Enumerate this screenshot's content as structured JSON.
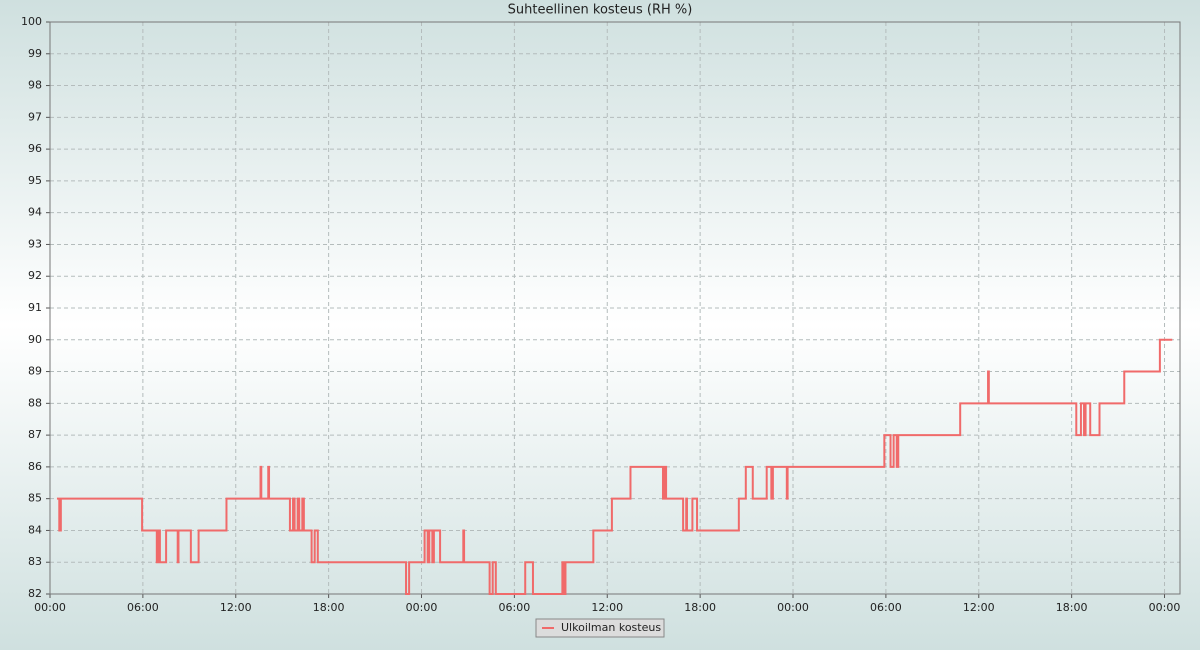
{
  "chart_data": {
    "type": "line",
    "title": "Suhteellinen kosteus (RH %)",
    "x": [
      0.45,
      0.6,
      0.6,
      0.7,
      0.7,
      5.95,
      5.95,
      6.9,
      6.9,
      7.0,
      7.0,
      7.1,
      7.1,
      7.5,
      7.5,
      8.25,
      8.25,
      8.3,
      8.3,
      9.1,
      9.1,
      9.6,
      9.6,
      11.4,
      11.4,
      13.6,
      13.6,
      13.65,
      13.65,
      14.1,
      14.1,
      14.15,
      14.15,
      15.5,
      15.5,
      15.7,
      15.7,
      15.8,
      15.8,
      16.0,
      16.0,
      16.1,
      16.1,
      16.3,
      16.3,
      16.4,
      16.4,
      16.9,
      16.9,
      17.1,
      17.1,
      17.3,
      17.3,
      23.0,
      23.0,
      23.2,
      23.2,
      24.2,
      24.2,
      24.4,
      24.4,
      24.5,
      24.5,
      24.7,
      24.7,
      24.8,
      24.8,
      25.2,
      25.2,
      26.7,
      26.7,
      26.75,
      26.75,
      28.4,
      28.4,
      28.6,
      28.6,
      28.8,
      28.8,
      30.7,
      30.7,
      31.2,
      31.2,
      33.1,
      33.1,
      33.2,
      33.2,
      33.3,
      33.3,
      35.1,
      35.1,
      36.3,
      36.3,
      37.5,
      37.5,
      39.6,
      39.6,
      39.7,
      39.7,
      39.8,
      39.8,
      40.9,
      40.9,
      41.1,
      41.1,
      41.15,
      41.15,
      41.5,
      41.5,
      41.8,
      41.8,
      44.5,
      44.5,
      44.95,
      44.95,
      45.4,
      45.4,
      46.3,
      46.3,
      46.6,
      46.6,
      46.7,
      46.7,
      47.6,
      47.6,
      47.65,
      47.65,
      53.9,
      53.9,
      54.3,
      54.3,
      54.5,
      54.5,
      54.7,
      54.7,
      54.8,
      54.8,
      58.8,
      58.8,
      60.6,
      60.6,
      60.65,
      60.65,
      66.3,
      66.3,
      66.6,
      66.6,
      66.8,
      66.8,
      66.9,
      66.9,
      67.2,
      67.2,
      67.8,
      67.8,
      69.4,
      69.4,
      71.7,
      71.7,
      72.5
    ],
    "series": [
      {
        "name": "Ulkoilman kosteus",
        "color": "#f06a6a",
        "values": [
          85,
          85,
          84,
          84,
          85,
          85,
          84,
          84,
          83,
          83,
          84,
          84,
          83,
          83,
          84,
          84,
          83,
          83,
          84,
          84,
          83,
          83,
          84,
          84,
          85,
          85,
          86,
          86,
          85,
          85,
          86,
          86,
          85,
          85,
          84,
          84,
          85,
          85,
          84,
          84,
          85,
          85,
          84,
          84,
          85,
          85,
          84,
          84,
          83,
          83,
          84,
          84,
          83,
          83,
          82,
          82,
          83,
          83,
          84,
          84,
          83,
          83,
          84,
          84,
          83,
          83,
          84,
          84,
          83,
          83,
          84,
          84,
          83,
          83,
          82,
          82,
          83,
          83,
          82,
          82,
          83,
          83,
          82,
          82,
          83,
          83,
          82,
          82,
          83,
          83,
          84,
          84,
          85,
          85,
          86,
          86,
          85,
          85,
          86,
          86,
          85,
          85,
          84,
          84,
          85,
          85,
          84,
          84,
          85,
          85,
          84,
          84,
          85,
          85,
          86,
          86,
          85,
          85,
          86,
          86,
          85,
          85,
          86,
          86,
          85,
          85,
          86,
          86,
          87,
          87,
          86,
          86,
          87,
          87,
          86,
          86,
          87,
          87,
          88,
          88,
          89,
          89,
          88,
          88,
          87,
          87,
          88,
          88,
          87,
          87,
          88,
          88,
          87,
          87,
          88,
          88,
          89,
          89,
          90,
          90
        ]
      }
    ],
    "xlim": [
      0,
      73
    ],
    "xticks": [
      {
        "value": 0,
        "label": "00:00"
      },
      {
        "value": 6,
        "label": "06:00"
      },
      {
        "value": 12,
        "label": "12:00"
      },
      {
        "value": 18,
        "label": "18:00"
      },
      {
        "value": 24,
        "label": "00:00"
      },
      {
        "value": 30,
        "label": "06:00"
      },
      {
        "value": 36,
        "label": "12:00"
      },
      {
        "value": 42,
        "label": "18:00"
      },
      {
        "value": 48,
        "label": "00:00"
      },
      {
        "value": 54,
        "label": "06:00"
      },
      {
        "value": 60,
        "label": "12:00"
      },
      {
        "value": 66,
        "label": "18:00"
      },
      {
        "value": 72,
        "label": "00:00"
      }
    ],
    "ylim": [
      82,
      100
    ],
    "yticks": [
      82,
      83,
      84,
      85,
      86,
      87,
      88,
      89,
      90,
      91,
      92,
      93,
      94,
      95,
      96,
      97,
      98,
      99,
      100
    ],
    "grid": true
  }
}
